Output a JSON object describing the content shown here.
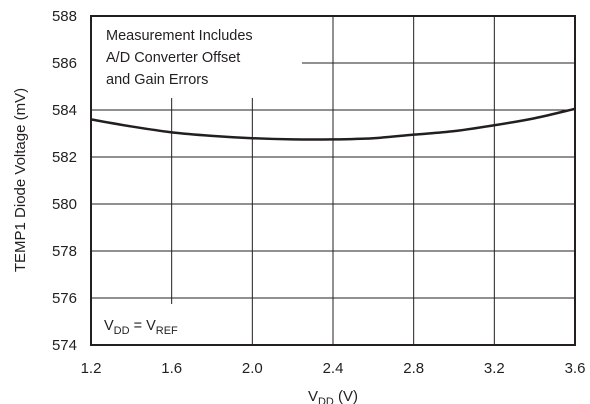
{
  "chart_data": {
    "type": "line",
    "title": "",
    "xlabel": {
      "main": "V",
      "sub": "DD",
      "suffix": " (V)"
    },
    "ylabel": "TEMP1 Diode Voltage (mV)",
    "xlim": [
      1.2,
      3.6
    ],
    "ylim": [
      574,
      588
    ],
    "xticks": [
      1.2,
      1.6,
      2.0,
      2.4,
      2.8,
      3.2,
      3.6
    ],
    "xtick_labels": [
      "1.2",
      "1.6",
      "2.0",
      "2.4",
      "2.8",
      "3.2",
      "3.6"
    ],
    "yticks": [
      574,
      576,
      578,
      580,
      582,
      584,
      586,
      588
    ],
    "ytick_labels": [
      "574",
      "576",
      "578",
      "580",
      "582",
      "584",
      "586",
      "588"
    ],
    "grid": true,
    "annotations": {
      "measurement": [
        "Measurement Includes",
        "A/D Converter Offset",
        "and Gain Errors"
      ],
      "condition": {
        "a": "V",
        "a_sub": "DD",
        "eq": " = V",
        "b_sub": "REF"
      }
    },
    "series": [
      {
        "x": [
          1.2,
          1.4,
          1.6,
          1.8,
          2.0,
          2.2,
          2.4,
          2.6,
          2.8,
          3.0,
          3.2,
          3.4,
          3.6
        ],
        "values": [
          583.6,
          583.3,
          583.05,
          582.9,
          582.8,
          582.75,
          582.75,
          582.8,
          582.95,
          583.1,
          583.35,
          583.65,
          584.05
        ]
      }
    ],
    "colors": {
      "line": "#231f20",
      "grid": "#231f20",
      "background": "#ffffff"
    }
  }
}
